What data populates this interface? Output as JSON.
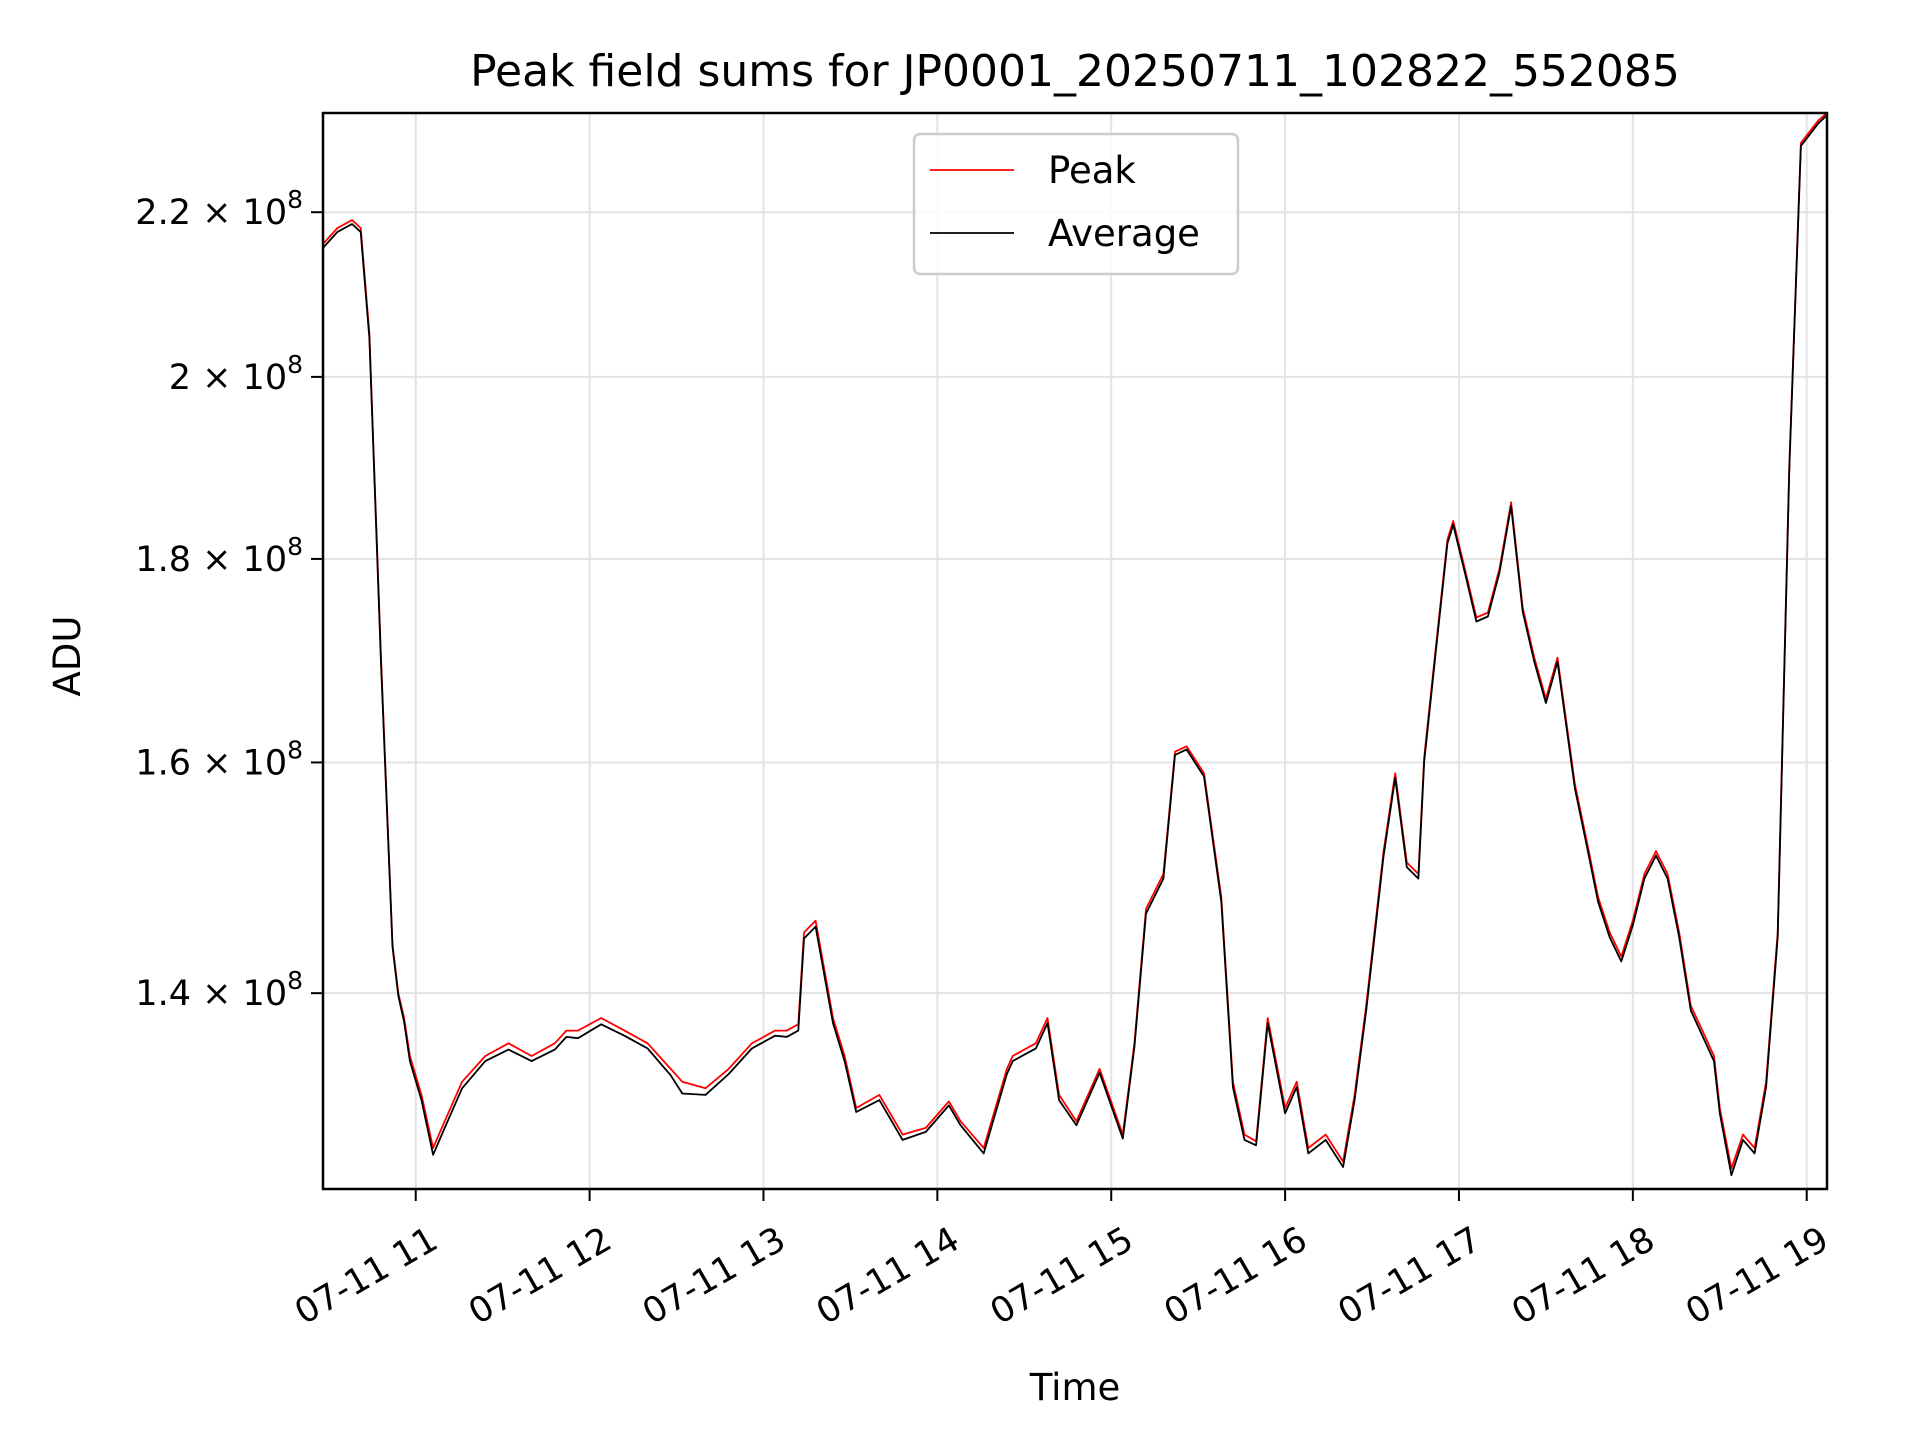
{
  "chart_data": {
    "type": "line",
    "title": "Peak field sums for JP0001_20250711_102822_552085",
    "xlabel": "Time",
    "ylabel": "ADU",
    "yscale": "log",
    "grid": true,
    "legend_position": "upper center",
    "x_range": [
      "2025-07-11 10:28",
      "2025-07-11 19:07"
    ],
    "ylim": [
      125000000,
      233000000
    ],
    "x_ticks": [
      {
        "time": "2025-07-11 11:00",
        "label": "07-11 11"
      },
      {
        "time": "2025-07-11 12:00",
        "label": "07-11 12"
      },
      {
        "time": "2025-07-11 13:00",
        "label": "07-11 13"
      },
      {
        "time": "2025-07-11 14:00",
        "label": "07-11 14"
      },
      {
        "time": "2025-07-11 15:00",
        "label": "07-11 15"
      },
      {
        "time": "2025-07-11 16:00",
        "label": "07-11 16"
      },
      {
        "time": "2025-07-11 17:00",
        "label": "07-11 17"
      },
      {
        "time": "2025-07-11 18:00",
        "label": "07-11 18"
      },
      {
        "time": "2025-07-11 19:00",
        "label": "07-11 19"
      }
    ],
    "y_ticks": [
      {
        "value": 140000000,
        "mantissa": "1.4",
        "base": "10",
        "exp": "8"
      },
      {
        "value": 160000000,
        "mantissa": "1.6",
        "base": "10",
        "exp": "8"
      },
      {
        "value": 180000000,
        "mantissa": "1.8",
        "base": "10",
        "exp": "8"
      },
      {
        "value": 200000000,
        "mantissa": "2",
        "base": "10",
        "exp": "8"
      },
      {
        "value": 220000000,
        "mantissa": "2.2",
        "base": "10",
        "exp": "8"
      }
    ],
    "x": [
      "2025-07-11 10:28",
      "2025-07-11 10:33",
      "2025-07-11 10:38",
      "2025-07-11 10:41",
      "2025-07-11 10:44",
      "2025-07-11 10:48",
      "2025-07-11 10:52",
      "2025-07-11 10:54",
      "2025-07-11 10:56",
      "2025-07-11 10:58",
      "2025-07-11 11:02",
      "2025-07-11 11:06",
      "2025-07-11 11:10",
      "2025-07-11 11:16",
      "2025-07-11 11:24",
      "2025-07-11 11:32",
      "2025-07-11 11:40",
      "2025-07-11 11:48",
      "2025-07-11 11:52",
      "2025-07-11 11:56",
      "2025-07-11 12:04",
      "2025-07-11 12:12",
      "2025-07-11 12:20",
      "2025-07-11 12:28",
      "2025-07-11 12:32",
      "2025-07-11 12:40",
      "2025-07-11 12:48",
      "2025-07-11 12:56",
      "2025-07-11 13:04",
      "2025-07-11 13:08",
      "2025-07-11 13:12",
      "2025-07-11 13:14",
      "2025-07-11 13:18",
      "2025-07-11 13:24",
      "2025-07-11 13:28",
      "2025-07-11 13:32",
      "2025-07-11 13:40",
      "2025-07-11 13:48",
      "2025-07-11 13:56",
      "2025-07-11 14:04",
      "2025-07-11 14:08",
      "2025-07-11 14:16",
      "2025-07-11 14:24",
      "2025-07-11 14:26",
      "2025-07-11 14:30",
      "2025-07-11 14:34",
      "2025-07-11 14:38",
      "2025-07-11 14:42",
      "2025-07-11 14:48",
      "2025-07-11 14:56",
      "2025-07-11 15:04",
      "2025-07-11 15:08",
      "2025-07-11 15:12",
      "2025-07-11 15:18",
      "2025-07-11 15:22",
      "2025-07-11 15:26",
      "2025-07-11 15:32",
      "2025-07-11 15:38",
      "2025-07-11 15:42",
      "2025-07-11 15:46",
      "2025-07-11 15:50",
      "2025-07-11 15:54",
      "2025-07-11 16:00",
      "2025-07-11 16:04",
      "2025-07-11 16:08",
      "2025-07-11 16:14",
      "2025-07-11 16:20",
      "2025-07-11 16:24",
      "2025-07-11 16:28",
      "2025-07-11 16:34",
      "2025-07-11 16:38",
      "2025-07-11 16:42",
      "2025-07-11 16:46",
      "2025-07-11 16:48",
      "2025-07-11 16:52",
      "2025-07-11 16:56",
      "2025-07-11 16:58",
      "2025-07-11 17:02",
      "2025-07-11 17:06",
      "2025-07-11 17:10",
      "2025-07-11 17:14",
      "2025-07-11 17:18",
      "2025-07-11 17:22",
      "2025-07-11 17:26",
      "2025-07-11 17:30",
      "2025-07-11 17:34",
      "2025-07-11 17:40",
      "2025-07-11 17:44",
      "2025-07-11 17:48",
      "2025-07-11 17:52",
      "2025-07-11 17:56",
      "2025-07-11 18:00",
      "2025-07-11 18:04",
      "2025-07-11 18:08",
      "2025-07-11 18:12",
      "2025-07-11 18:16",
      "2025-07-11 18:20",
      "2025-07-11 18:24",
      "2025-07-11 18:28",
      "2025-07-11 18:30",
      "2025-07-11 18:34",
      "2025-07-11 18:38",
      "2025-07-11 18:42",
      "2025-07-11 18:46",
      "2025-07-11 18:50",
      "2025-07-11 18:54",
      "2025-07-11 18:58",
      "2025-07-11 19:04",
      "2025-07-11 19:07"
    ],
    "series": [
      {
        "name": "Peak",
        "color": "#ff0000",
        "values": [
          216000000,
          218000000,
          219000000,
          218000000,
          205000000,
          170000000,
          144000000,
          140000000,
          138000000,
          135000000,
          132000000,
          128000000,
          130000000,
          133000000,
          135000000,
          136000000,
          135000000,
          136000000,
          137000000,
          137000000,
          138000000,
          137000000,
          136000000,
          134000000,
          133000000,
          132500000,
          134000000,
          136000000,
          137000000,
          137000000,
          137500000,
          145000000,
          146000000,
          138000000,
          135000000,
          131000000,
          132000000,
          129000000,
          129500000,
          131500000,
          130000000,
          128000000,
          134000000,
          135000000,
          135500000,
          136000000,
          138000000,
          132000000,
          130000000,
          134000000,
          129000000,
          136000000,
          147000000,
          150000000,
          161000000,
          161500000,
          159000000,
          148000000,
          133000000,
          129000000,
          128500000,
          138000000,
          131000000,
          133000000,
          128000000,
          129000000,
          127000000,
          132000000,
          139000000,
          152000000,
          159000000,
          151000000,
          150000000,
          160500000,
          171000000,
          182000000,
          184000000,
          179000000,
          174000000,
          174500000,
          179000000,
          186000000,
          175000000,
          170000000,
          166000000,
          170000000,
          158000000,
          153000000,
          148000000,
          145000000,
          143000000,
          146000000,
          150000000,
          152000000,
          150000000,
          145000000,
          139000000,
          137000000,
          135000000,
          131000000,
          126500000,
          129000000,
          128000000,
          133000000,
          145000000,
          190000000,
          229000000,
          232000000,
          233000000
        ]
      },
      {
        "name": "Average",
        "color": "#000000",
        "values": [
          215500000,
          217500000,
          218500000,
          217500000,
          204500000,
          169500000,
          143800000,
          139800000,
          137700000,
          134600000,
          131600000,
          127500000,
          129500000,
          132500000,
          134600000,
          135500000,
          134600000,
          135500000,
          136500000,
          136400000,
          137500000,
          136600000,
          135600000,
          133500000,
          132100000,
          132000000,
          133600000,
          135600000,
          136600000,
          136500000,
          137000000,
          144500000,
          145500000,
          137600000,
          134600000,
          130700000,
          131600000,
          128600000,
          129200000,
          131200000,
          129700000,
          127600000,
          133600000,
          134600000,
          135100000,
          135600000,
          137600000,
          131600000,
          129700000,
          133700000,
          128700000,
          135700000,
          146600000,
          149600000,
          160700000,
          161200000,
          158700000,
          147600000,
          132600000,
          128600000,
          128200000,
          137600000,
          130600000,
          132600000,
          127600000,
          128600000,
          126600000,
          131600000,
          138600000,
          151600000,
          158600000,
          150600000,
          149600000,
          160100000,
          170600000,
          181600000,
          183600000,
          178600000,
          173600000,
          174100000,
          178600000,
          185600000,
          174600000,
          169600000,
          165600000,
          169600000,
          157600000,
          152600000,
          147600000,
          144600000,
          142600000,
          145600000,
          149600000,
          151600000,
          149600000,
          144600000,
          138600000,
          136600000,
          134600000,
          130600000,
          126000000,
          128600000,
          127600000,
          132600000,
          144600000,
          189600000,
          228600000,
          231600000,
          232700000
        ]
      }
    ]
  }
}
